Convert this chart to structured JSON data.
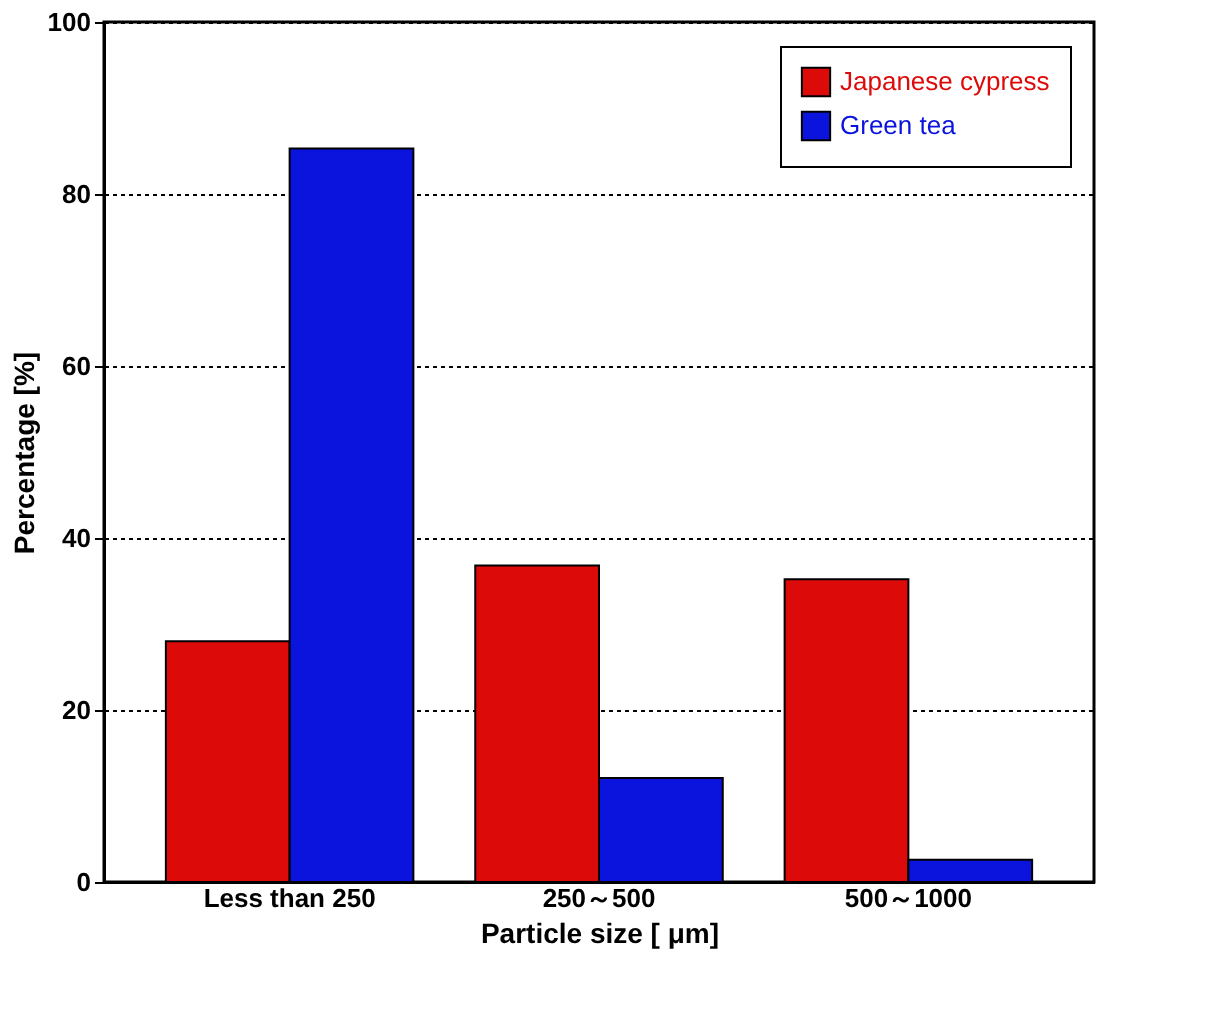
{
  "chart_data": {
    "type": "bar",
    "xlabel": "Particle size [ μm]",
    "ylabel": "Percentage [%]",
    "categories": [
      "Less than 250",
      "250～500",
      "500～1000"
    ],
    "series": [
      {
        "name": "Japanese cypress",
        "color": "#dd0a0a",
        "values": [
          28.0,
          36.8,
          35.2
        ]
      },
      {
        "name": "Green tea",
        "color": "#0a14dd",
        "values": [
          85.3,
          12.1,
          2.6
        ]
      }
    ],
    "ylim": [
      0,
      100
    ],
    "yticks": [
      0,
      20,
      40,
      60,
      80,
      100
    ],
    "grid": "y",
    "legend": "top right"
  }
}
